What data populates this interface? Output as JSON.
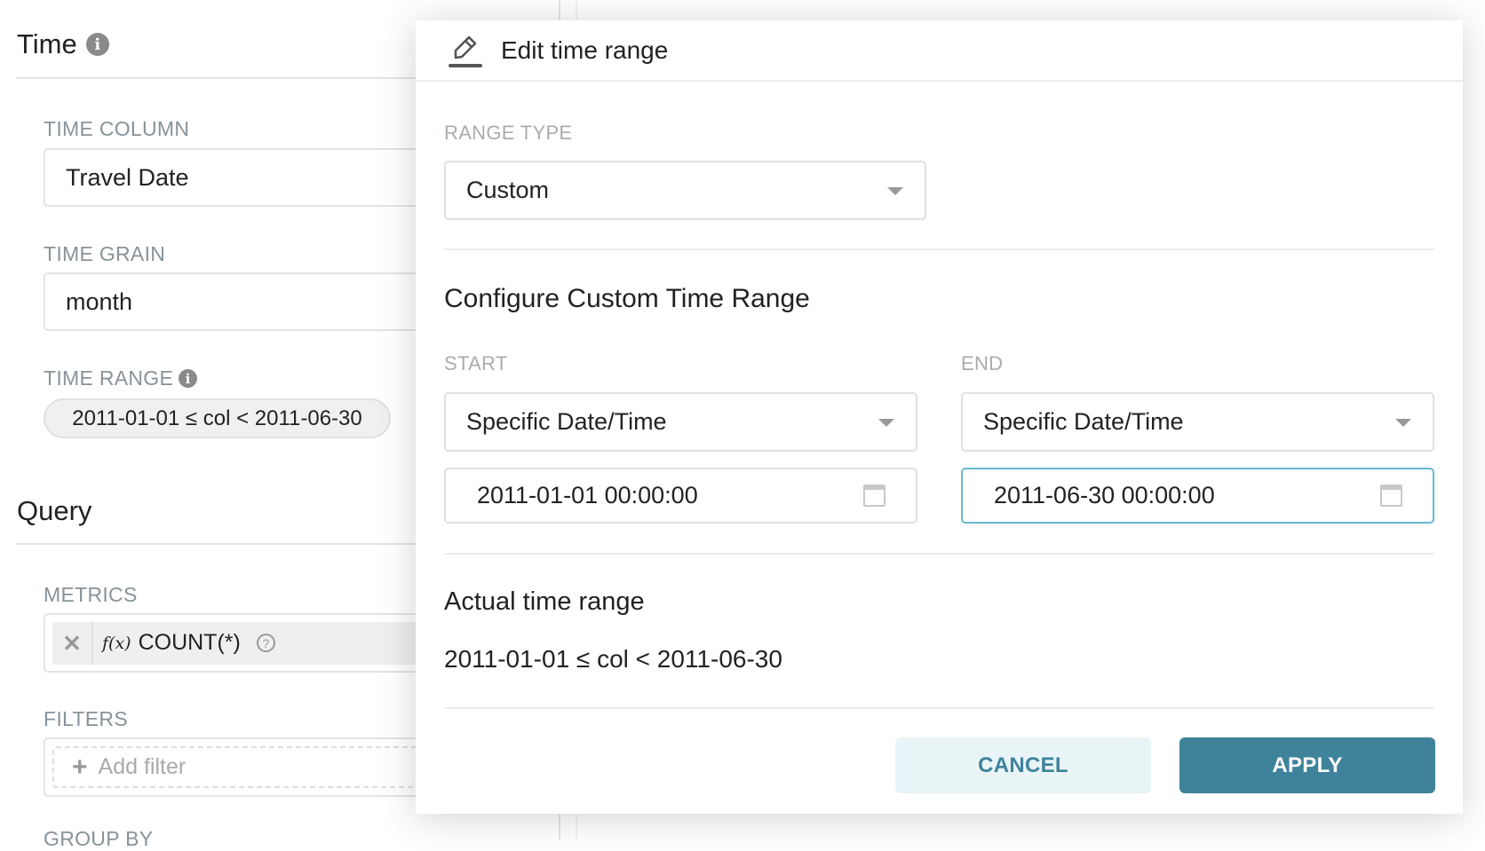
{
  "left_panel": {
    "time_section": {
      "title": "Time"
    },
    "time_column": {
      "label": "TIME COLUMN",
      "value": "Travel Date"
    },
    "time_grain": {
      "label": "TIME GRAIN",
      "value": "month"
    },
    "time_range": {
      "label": "TIME RANGE",
      "value": "2011-01-01 ≤ col < 2011-06-30"
    },
    "query_section": {
      "title": "Query"
    },
    "metrics": {
      "label": "METRICS",
      "items": [
        {
          "fx": "f(x)",
          "value": "COUNT(*)"
        }
      ]
    },
    "filters": {
      "label": "FILTERS",
      "placeholder": "Add filter"
    },
    "group_by": {
      "label": "GROUP BY"
    }
  },
  "modal": {
    "title": "Edit time range",
    "range_type": {
      "label": "RANGE TYPE",
      "value": "Custom"
    },
    "custom_heading": "Configure Custom Time Range",
    "start": {
      "label": "START",
      "mode": "Specific Date/Time",
      "value": "2011-01-01 00:00:00"
    },
    "end": {
      "label": "END",
      "mode": "Specific Date/Time",
      "value": "2011-06-30 00:00:00"
    },
    "actual_heading": "Actual time range",
    "actual_value": "2011-01-01 ≤ col < 2011-06-30",
    "cancel_label": "CANCEL",
    "apply_label": "APPLY"
  },
  "colors": {
    "primary": "#3f839b",
    "primary_light": "#e9f4f7",
    "focus_border": "#66b8cf"
  }
}
